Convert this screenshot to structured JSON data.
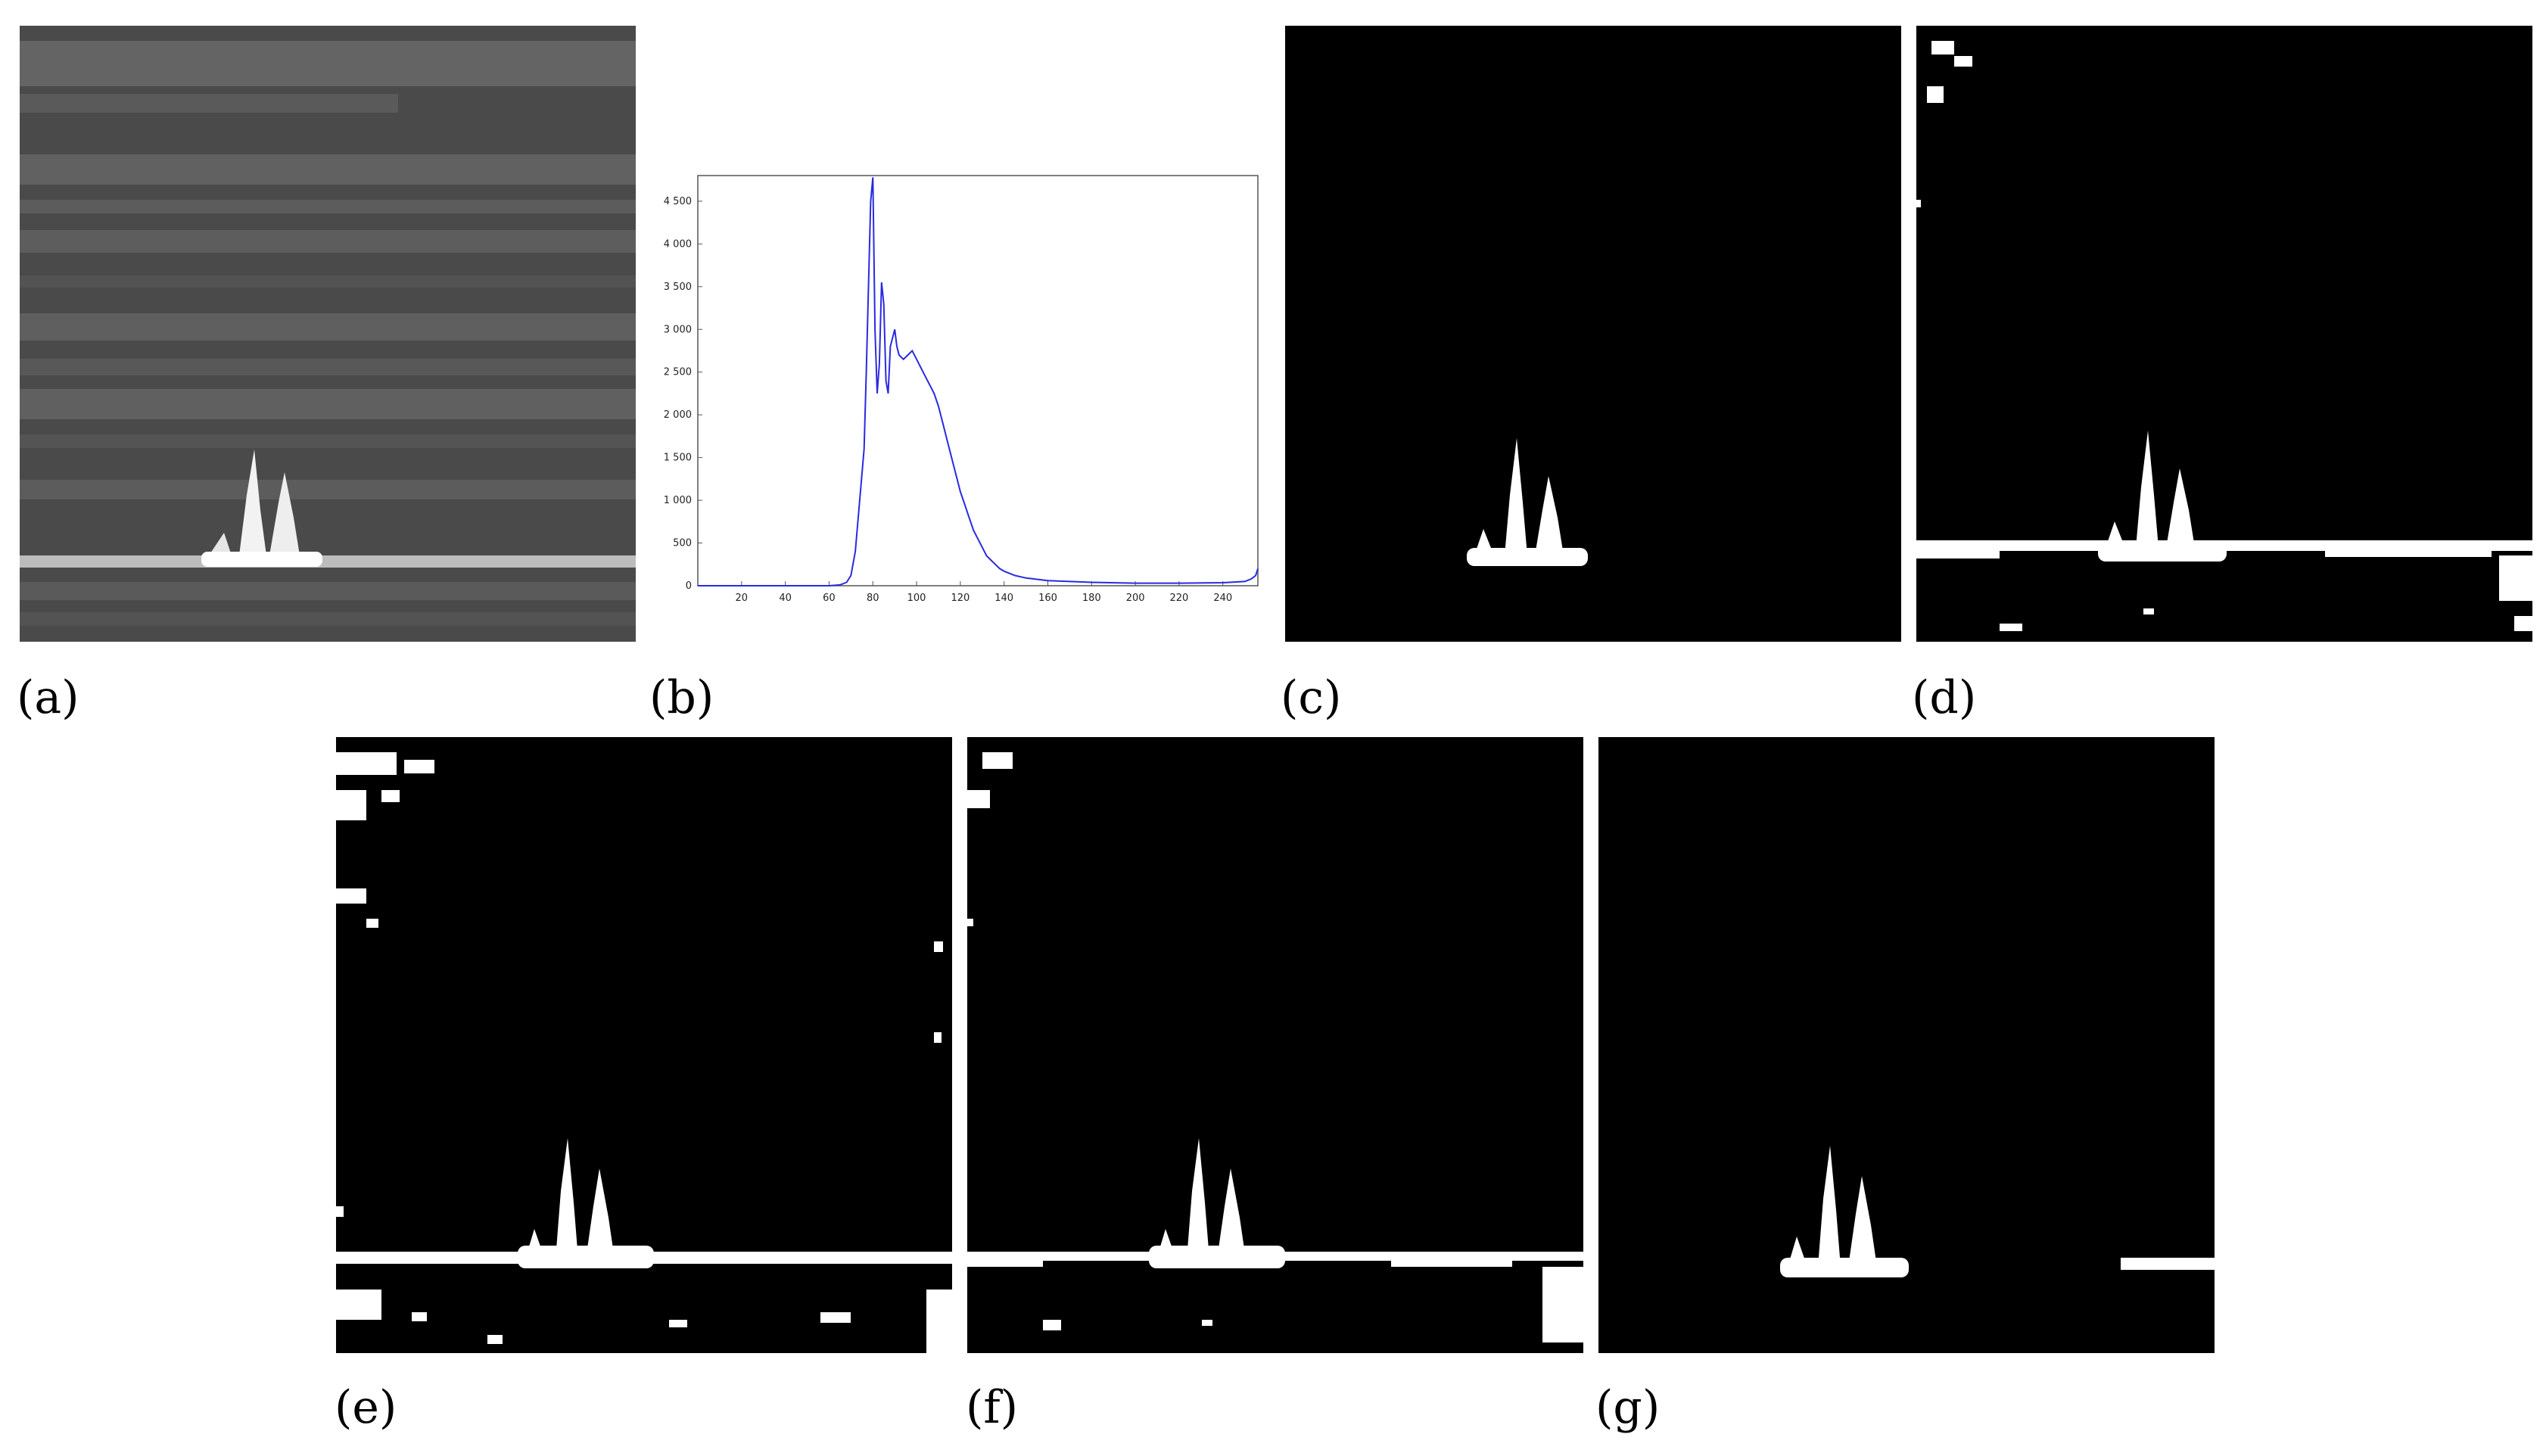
{
  "figure": {
    "panels": [
      {
        "id": "a",
        "label": "(a)",
        "kind": "grayscale-photo",
        "description_icon": "sailboat-on-sea"
      },
      {
        "id": "b",
        "label": "(b)",
        "kind": "histogram"
      },
      {
        "id": "c",
        "label": "(c)",
        "kind": "binary-mask"
      },
      {
        "id": "d",
        "label": "(d)",
        "kind": "binary-mask"
      },
      {
        "id": "e",
        "label": "(e)",
        "kind": "binary-mask"
      },
      {
        "id": "f",
        "label": "(f)",
        "kind": "binary-mask"
      },
      {
        "id": "g",
        "label": "(g)",
        "kind": "binary-mask"
      }
    ]
  },
  "chart_data": {
    "type": "line",
    "title": "",
    "xlabel": "",
    "ylabel": "",
    "xlim": [
      0,
      256
    ],
    "ylim": [
      0,
      4800
    ],
    "x_ticks": [
      20,
      40,
      60,
      80,
      100,
      120,
      140,
      160,
      180,
      200,
      220,
      240
    ],
    "x_tick_labels": [
      "20",
      "40",
      "60",
      "80",
      "100",
      "120",
      "140",
      "160",
      "180",
      "200",
      "220",
      "240"
    ],
    "y_ticks": [
      0,
      500,
      1000,
      1500,
      2000,
      2500,
      3000,
      3500,
      4000,
      4500
    ],
    "y_tick_labels": [
      "0",
      "500",
      "1 000",
      "1 500",
      "2 000",
      "2 500",
      "3 000",
      "3 500",
      "4 000",
      "4 500"
    ],
    "grid": false,
    "line_color": "#2a2ae0",
    "series": [
      {
        "x": [
          0,
          60,
          65,
          68,
          70,
          72,
          74,
          76,
          77,
          78,
          79,
          80,
          81,
          82,
          83,
          84,
          85,
          86,
          87,
          88,
          89,
          90,
          91,
          92,
          94,
          96,
          98,
          100,
          102,
          104,
          106,
          108,
          110,
          112,
          114,
          116,
          118,
          120,
          122,
          124,
          126,
          128,
          130,
          132,
          134,
          136,
          138,
          140,
          145,
          150,
          160,
          170,
          180,
          200,
          220,
          240,
          250,
          253,
          255,
          256
        ],
        "y": [
          0,
          0,
          10,
          40,
          120,
          400,
          1000,
          1600,
          2500,
          3500,
          4500,
          4780,
          3000,
          2250,
          2600,
          3550,
          3300,
          2400,
          2250,
          2800,
          2900,
          3000,
          2800,
          2700,
          2650,
          2700,
          2750,
          2650,
          2550,
          2450,
          2350,
          2250,
          2100,
          1900,
          1700,
          1500,
          1300,
          1100,
          950,
          800,
          650,
          550,
          450,
          350,
          300,
          250,
          200,
          170,
          120,
          90,
          60,
          50,
          40,
          30,
          30,
          35,
          50,
          80,
          120,
          200
        ]
      }
    ]
  },
  "colors": {
    "mask_bg": "#000000",
    "mask_fg": "#ffffff",
    "photo_base": "#4a4a4a"
  }
}
